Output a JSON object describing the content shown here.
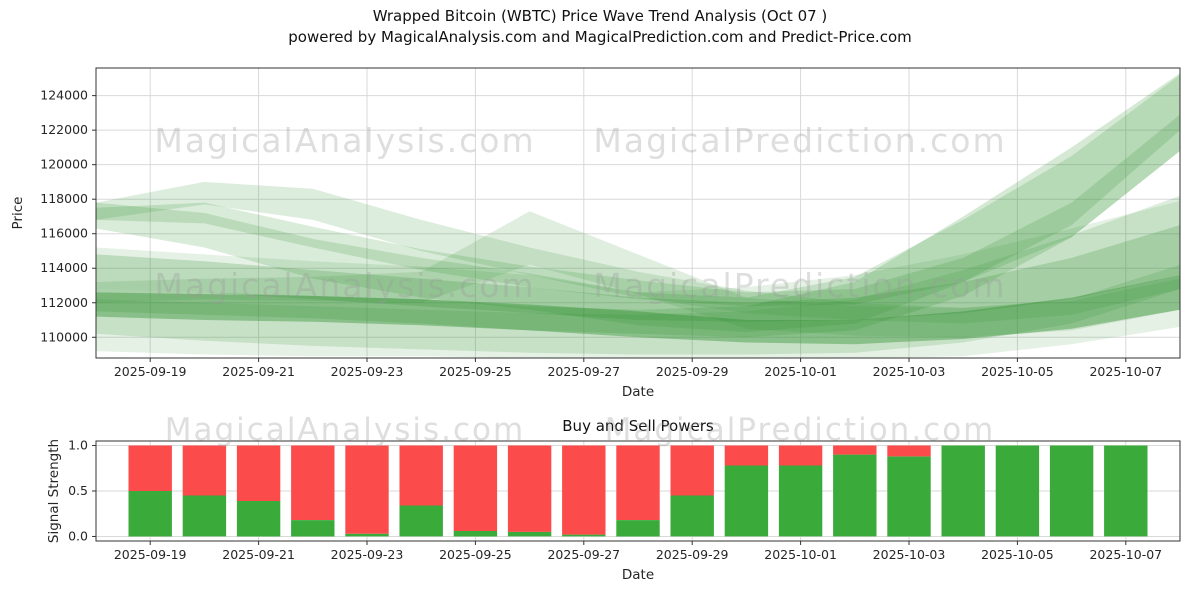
{
  "title_line1": "Wrapped Bitcoin (WBTC) Price Wave Trend Analysis (Oct 07 )",
  "title_line2": "powered by MagicalAnalysis.com and MagicalPrediction.com and Predict-Price.com",
  "watermarks": {
    "left": "MagicalAnalysis.com",
    "right": "MagicalPrediction.com"
  },
  "colors": {
    "band_green": "#2d8f2d",
    "bar_green": "#3aaa3a",
    "bar_red": "#fb4b4b",
    "grid": "#d9d9d9",
    "spine": "#333333",
    "text": "#262626",
    "watermark": "#9a9a9a"
  },
  "chart_data": [
    {
      "type": "area",
      "title": "",
      "xlabel": "Date",
      "ylabel": "Price",
      "ylim": [
        108800,
        125600
      ],
      "yticks": [
        110000,
        112000,
        114000,
        116000,
        118000,
        120000,
        122000,
        124000
      ],
      "ytick_labels": [
        "110000",
        "112000",
        "114000",
        "116000",
        "118000",
        "120000",
        "122000",
        "124000"
      ],
      "xtick_labels": [
        "2025-09-19",
        "2025-09-21",
        "2025-09-23",
        "2025-09-25",
        "2025-09-27",
        "2025-09-29",
        "2025-10-01",
        "2025-10-03",
        "2025-10-05",
        "2025-10-07"
      ],
      "xtick_days": [
        1,
        3,
        5,
        7,
        9,
        11,
        13,
        15,
        17,
        19
      ],
      "x_range_days": [
        0,
        20
      ],
      "grid": true,
      "band_sample_days": [
        0,
        2,
        4,
        6,
        8,
        10,
        12,
        14,
        16,
        18,
        20
      ],
      "bands": [
        {
          "alpha": 0.12,
          "lower": [
            109200,
            109000,
            108900,
            108900,
            108800,
            108800,
            108800,
            108800,
            108900,
            109600,
            110600
          ],
          "upper": [
            115200,
            114800,
            114400,
            114100,
            113600,
            112600,
            112900,
            113600,
            114800,
            116300,
            117900
          ]
        },
        {
          "alpha": 0.16,
          "lower": [
            110200,
            109800,
            109500,
            109300,
            109100,
            109000,
            109000,
            109100,
            109700,
            110800,
            112800
          ],
          "upper": [
            112200,
            112000,
            111800,
            111600,
            111400,
            111300,
            111500,
            112200,
            113900,
            115900,
            118200
          ]
        },
        {
          "alpha": 0.16,
          "lower": [
            116800,
            117700,
            116800,
            115000,
            113600,
            112300,
            111400,
            111000,
            110800,
            111300,
            112800
          ],
          "upper": [
            117800,
            119000,
            118600,
            116800,
            115200,
            113800,
            112700,
            112000,
            111700,
            112200,
            114200
          ]
        },
        {
          "alpha": 0.15,
          "lower": [
            112000,
            112200,
            112100,
            112000,
            114200,
            112500,
            110500,
            110100,
            110000,
            110400,
            111600
          ],
          "upper": [
            113200,
            113400,
            113500,
            113800,
            117300,
            114800,
            112300,
            111800,
            111700,
            112100,
            113400
          ]
        },
        {
          "alpha": 0.18,
          "lower": [
            116300,
            115200,
            113400,
            112300,
            111600,
            110700,
            110300,
            110800,
            113200,
            116500,
            122000
          ],
          "upper": [
            117800,
            117200,
            115700,
            114600,
            113700,
            112600,
            112300,
            113500,
            116800,
            120500,
            125200
          ]
        },
        {
          "alpha": 0.18,
          "lower": [
            116800,
            116600,
            115200,
            113900,
            112900,
            112200,
            111800,
            111900,
            113200,
            115800,
            120800
          ],
          "upper": [
            117500,
            117800,
            116400,
            115100,
            114100,
            113300,
            112600,
            112800,
            114600,
            117800,
            122900
          ]
        },
        {
          "alpha": 0.2,
          "lower": [
            111500,
            111300,
            111100,
            110800,
            110400,
            110200,
            110000,
            110400,
            112400,
            115800,
            120800
          ],
          "upper": [
            112800,
            112600,
            112400,
            112200,
            111800,
            111600,
            111800,
            113200,
            117000,
            121000,
            125300
          ]
        },
        {
          "alpha": 0.22,
          "lower": [
            112800,
            112600,
            112200,
            111800,
            111400,
            111000,
            110900,
            111000,
            111400,
            112200,
            113600
          ],
          "upper": [
            114800,
            114400,
            113900,
            113400,
            112900,
            112300,
            112000,
            112300,
            113200,
            114600,
            116500
          ]
        },
        {
          "alpha": 0.4,
          "lower": [
            111200,
            111000,
            110900,
            110700,
            110400,
            110000,
            109700,
            109600,
            109900,
            110500,
            111600
          ],
          "upper": [
            112600,
            112500,
            112400,
            112200,
            111900,
            111500,
            111000,
            111000,
            111500,
            112300,
            113600
          ]
        }
      ]
    },
    {
      "type": "bar",
      "title": "Buy and Sell Powers",
      "xlabel": "Date",
      "ylabel": "Signal Strength",
      "ylim": [
        -0.05,
        1.05
      ],
      "yticks": [
        0.0,
        0.5,
        1.0
      ],
      "ytick_labels": [
        "0.0",
        "0.5",
        "1.0"
      ],
      "xtick_labels": [
        "2025-09-19",
        "2025-09-21",
        "2025-09-23",
        "2025-09-25",
        "2025-09-27",
        "2025-09-29",
        "2025-10-01",
        "2025-10-03",
        "2025-10-05",
        "2025-10-07"
      ],
      "xtick_days": [
        1,
        3,
        5,
        7,
        9,
        11,
        13,
        15,
        17,
        19
      ],
      "x_range_days": [
        0,
        20
      ],
      "grid": true,
      "bar_dates": [
        "2025-09-19",
        "2025-09-20",
        "2025-09-21",
        "2025-09-22",
        "2025-09-23",
        "2025-09-24",
        "2025-09-25",
        "2025-09-26",
        "2025-09-27",
        "2025-09-28",
        "2025-09-29",
        "2025-09-30",
        "2025-10-01",
        "2025-10-02",
        "2025-10-03",
        "2025-10-04",
        "2025-10-05",
        "2025-10-06",
        "2025-10-07"
      ],
      "bar_days": [
        1,
        2,
        3,
        4,
        5,
        6,
        7,
        8,
        9,
        10,
        11,
        12,
        13,
        14,
        15,
        16,
        17,
        18,
        19
      ],
      "series": [
        {
          "name": "buy",
          "stack_order": 0,
          "values": [
            0.5,
            0.45,
            0.39,
            0.18,
            0.03,
            0.34,
            0.06,
            0.05,
            0.02,
            0.18,
            0.45,
            0.78,
            0.78,
            0.9,
            0.88,
            1.0,
            1.0,
            1.0,
            1.0
          ]
        },
        {
          "name": "sell",
          "stack_order": 1,
          "values": [
            0.5,
            0.55,
            0.61,
            0.82,
            0.97,
            0.66,
            0.94,
            0.95,
            0.98,
            0.82,
            0.55,
            0.22,
            0.22,
            0.1,
            0.12,
            0.0,
            0.0,
            0.0,
            0.0
          ]
        }
      ]
    }
  ]
}
